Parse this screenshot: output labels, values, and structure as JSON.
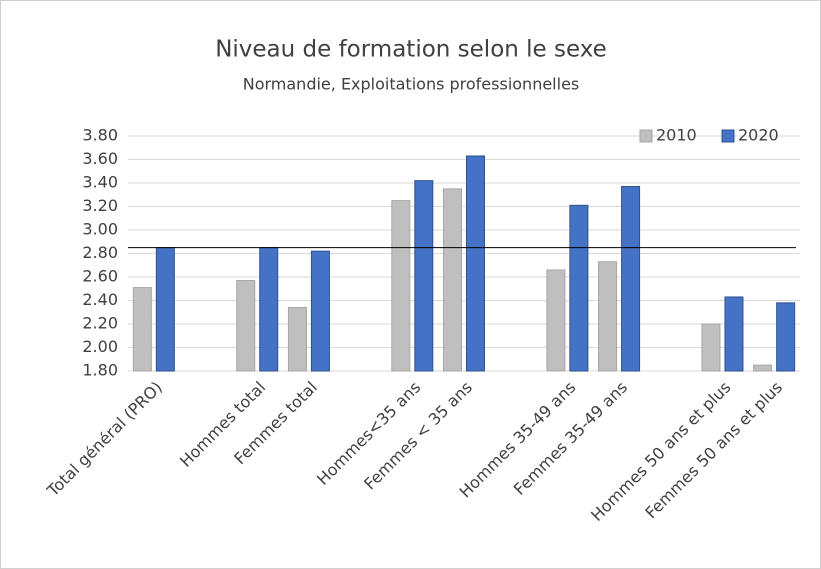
{
  "chart_data": {
    "type": "bar",
    "title": "Niveau de formation selon le sexe",
    "subtitle": "Normandie, Exploitations professionnelles",
    "categories": [
      "Total général (PRO)",
      null,
      "Hommes total",
      "Femmes total",
      null,
      "Hommes<35 ans",
      "Femmes < 35 ans",
      null,
      "Hommes 35-49 ans",
      "Femmes 35-49 ans",
      null,
      "Hommes 50 ans et plus",
      "Femmes 50 ans et plus"
    ],
    "series": [
      {
        "name": "2010",
        "color": "#bfbfbf",
        "values": [
          2.51,
          null,
          2.57,
          2.34,
          null,
          3.25,
          3.35,
          null,
          2.66,
          2.73,
          null,
          2.2,
          1.85
        ]
      },
      {
        "name": "2020",
        "color": "#4472c4",
        "values": [
          2.85,
          null,
          2.85,
          2.82,
          null,
          3.42,
          3.63,
          null,
          3.21,
          3.37,
          null,
          2.43,
          2.38
        ]
      }
    ],
    "reference_line": 2.85,
    "ylim": [
      1.8,
      3.8
    ],
    "yticks": [
      {
        "value": 1.8,
        "label": "1.80"
      },
      {
        "value": 2.0,
        "label": "2.00"
      },
      {
        "value": 2.2,
        "label": "2.20"
      },
      {
        "value": 2.4,
        "label": "2.40"
      },
      {
        "value": 2.6,
        "label": "2.60"
      },
      {
        "value": 2.8,
        "label": "2.80"
      },
      {
        "value": 3.0,
        "label": "3.00"
      },
      {
        "value": 3.2,
        "label": "3.20"
      },
      {
        "value": 3.4,
        "label": "3.40"
      },
      {
        "value": 3.6,
        "label": "3.60"
      },
      {
        "value": 3.8,
        "label": "3.80"
      }
    ],
    "grid": true,
    "legend": "top-right"
  }
}
